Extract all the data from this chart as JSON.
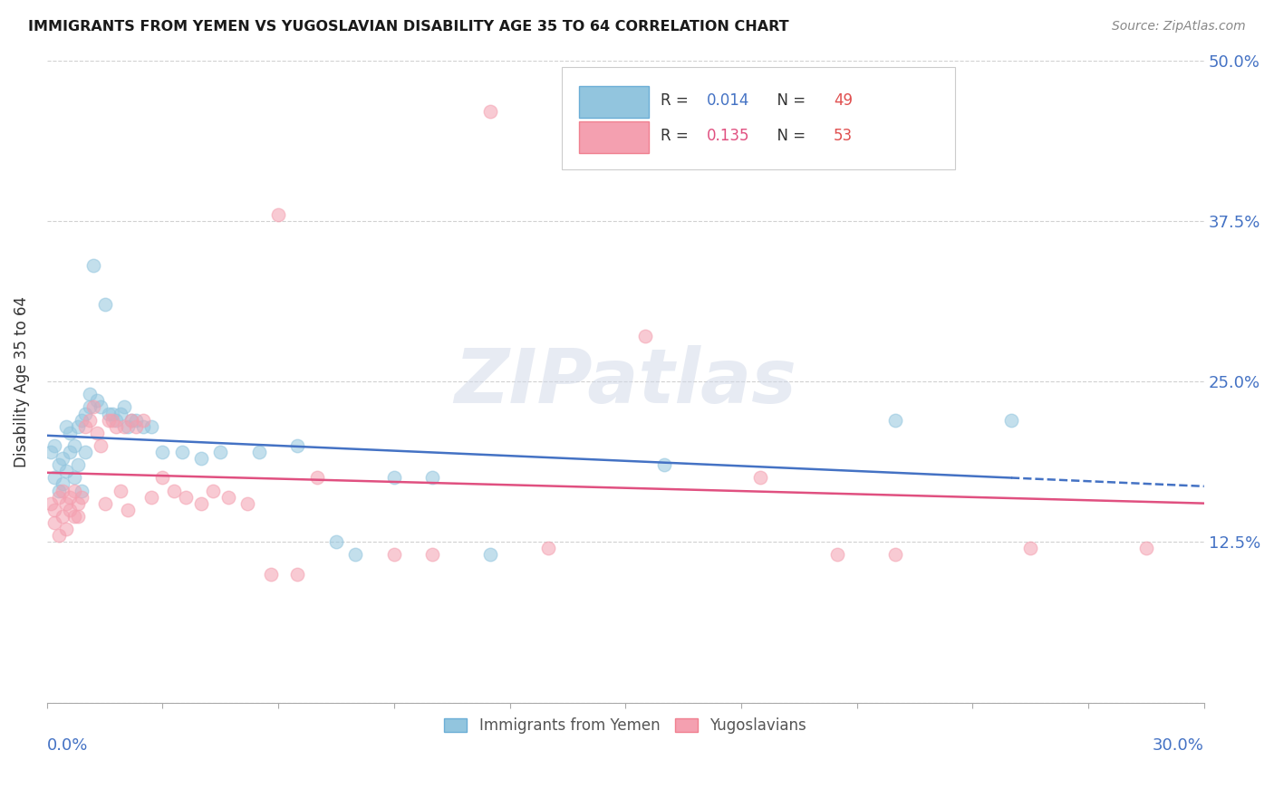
{
  "title": "IMMIGRANTS FROM YEMEN VS YUGOSLAVIAN DISABILITY AGE 35 TO 64 CORRELATION CHART",
  "source": "Source: ZipAtlas.com",
  "ylabel": "Disability Age 35 to 64",
  "series1_name": "Immigrants from Yemen",
  "series2_name": "Yugoslavians",
  "series1_color": "#92c5de",
  "series2_color": "#f4a0b0",
  "series1_line_color": "#4472c4",
  "series2_line_color": "#e05080",
  "series1_R": 0.014,
  "series1_N": 49,
  "series2_R": 0.135,
  "series2_N": 53,
  "xmin": 0.0,
  "xmax": 0.3,
  "ymin": 0.0,
  "ymax": 0.5,
  "watermark": "ZIPatlas",
  "legend_R_color": "#4472c4",
  "legend_N_color": "#e05050",
  "series1_x": [
    0.001,
    0.002,
    0.002,
    0.003,
    0.003,
    0.004,
    0.004,
    0.005,
    0.005,
    0.006,
    0.006,
    0.007,
    0.007,
    0.008,
    0.008,
    0.009,
    0.009,
    0.01,
    0.01,
    0.011,
    0.011,
    0.012,
    0.013,
    0.014,
    0.015,
    0.016,
    0.017,
    0.018,
    0.019,
    0.02,
    0.021,
    0.022,
    0.023,
    0.025,
    0.027,
    0.03,
    0.035,
    0.04,
    0.045,
    0.055,
    0.065,
    0.075,
    0.08,
    0.09,
    0.1,
    0.115,
    0.16,
    0.22,
    0.25
  ],
  "series1_y": [
    0.195,
    0.2,
    0.175,
    0.185,
    0.165,
    0.19,
    0.17,
    0.215,
    0.18,
    0.195,
    0.21,
    0.2,
    0.175,
    0.215,
    0.185,
    0.22,
    0.165,
    0.195,
    0.225,
    0.23,
    0.24,
    0.34,
    0.235,
    0.23,
    0.31,
    0.225,
    0.225,
    0.22,
    0.225,
    0.23,
    0.215,
    0.22,
    0.22,
    0.215,
    0.215,
    0.195,
    0.195,
    0.19,
    0.195,
    0.195,
    0.2,
    0.125,
    0.115,
    0.175,
    0.175,
    0.115,
    0.185,
    0.22,
    0.22
  ],
  "series2_x": [
    0.001,
    0.002,
    0.002,
    0.003,
    0.003,
    0.004,
    0.004,
    0.005,
    0.005,
    0.006,
    0.006,
    0.007,
    0.007,
    0.008,
    0.008,
    0.009,
    0.01,
    0.011,
    0.012,
    0.013,
    0.014,
    0.015,
    0.016,
    0.017,
    0.018,
    0.019,
    0.02,
    0.021,
    0.022,
    0.023,
    0.025,
    0.027,
    0.03,
    0.033,
    0.036,
    0.04,
    0.043,
    0.047,
    0.052,
    0.058,
    0.06,
    0.065,
    0.07,
    0.09,
    0.1,
    0.115,
    0.13,
    0.155,
    0.185,
    0.205,
    0.22,
    0.255,
    0.285
  ],
  "series2_y": [
    0.155,
    0.15,
    0.14,
    0.16,
    0.13,
    0.165,
    0.145,
    0.155,
    0.135,
    0.16,
    0.15,
    0.145,
    0.165,
    0.155,
    0.145,
    0.16,
    0.215,
    0.22,
    0.23,
    0.21,
    0.2,
    0.155,
    0.22,
    0.22,
    0.215,
    0.165,
    0.215,
    0.15,
    0.22,
    0.215,
    0.22,
    0.16,
    0.175,
    0.165,
    0.16,
    0.155,
    0.165,
    0.16,
    0.155,
    0.1,
    0.38,
    0.1,
    0.175,
    0.115,
    0.115,
    0.46,
    0.12,
    0.285,
    0.175,
    0.115,
    0.115,
    0.12,
    0.12
  ]
}
